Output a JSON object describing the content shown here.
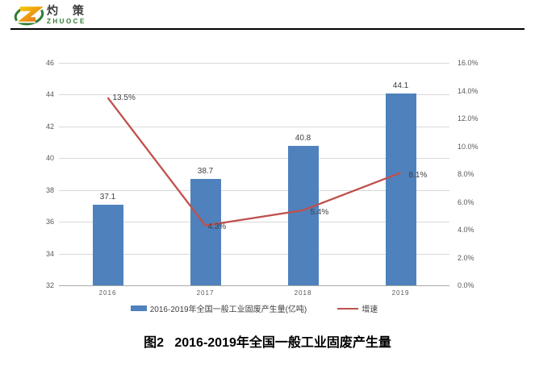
{
  "logo": {
    "cn_name": "灼 策",
    "en_name": "ZHUOCE"
  },
  "caption": "图2   2016-2019年全国一般工业固废产生量",
  "colors": {
    "bar": "#4f81bd",
    "line": "#c0504d",
    "grid": "#d9d9d9",
    "axis_line": "#a9a9a9",
    "tick_text": "#595959",
    "label_text": "#404040",
    "logo_green": "#2e7d32",
    "logo_orange_1": "#f5c400",
    "logo_orange_2": "#e87d1e"
  },
  "chart_data": {
    "type": "bar",
    "categories": [
      "2016",
      "2017",
      "2018",
      "2019"
    ],
    "series": [
      {
        "name": "2016-2019年全国一般工业固废产生量(亿吨)",
        "type": "bar",
        "axis": "left",
        "values": [
          37.1,
          38.7,
          40.8,
          44.1
        ],
        "labels": [
          "37.1",
          "38.7",
          "40.8",
          "44.1"
        ]
      },
      {
        "name": "增速",
        "type": "line",
        "axis": "right",
        "values": [
          13.5,
          4.3,
          5.4,
          8.1
        ],
        "labels": [
          "13.5%",
          "4.3%",
          "5.4%",
          "8.1%"
        ]
      }
    ],
    "left_axis": {
      "min": 32,
      "max": 46,
      "step": 2,
      "tick_labels": [
        "46",
        "44",
        "42",
        "40",
        "38",
        "36",
        "34",
        "32"
      ]
    },
    "right_axis": {
      "min": 0,
      "max": 16,
      "step": 2,
      "tick_labels": [
        "16.0%",
        "14.0%",
        "12.0%",
        "10.0%",
        "8.0%",
        "6.0%",
        "4.0%",
        "2.0%",
        "0.0%"
      ]
    },
    "grid": true,
    "legend_position": "bottom"
  }
}
